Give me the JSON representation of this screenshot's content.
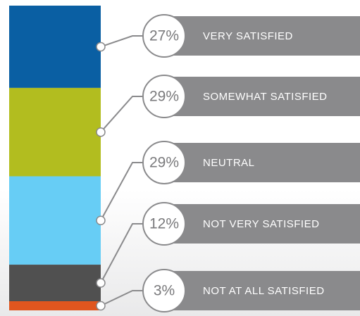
{
  "chart_data": {
    "type": "bar",
    "stacked": true,
    "series": [
      {
        "name": "VERY SATISFIED",
        "color": "#0a5fa3",
        "values": [
          27
        ],
        "value_labels": [
          "27%"
        ]
      },
      {
        "name": "SOMEWHAT SATISFIED",
        "color": "#b2bd1f",
        "values": [
          29
        ],
        "value_labels": [
          "29%"
        ]
      },
      {
        "name": "NEUTRAL",
        "color": "#67cdf5",
        "values": [
          29
        ],
        "value_labels": [
          "29%"
        ]
      },
      {
        "name": "NOT VERY SATISFIED",
        "color": "#505050",
        "values": [
          12
        ],
        "value_labels": [
          "12%"
        ]
      },
      {
        "name": "NOT AT ALL SATISFIED",
        "color": "#e0561f",
        "values": [
          3
        ],
        "value_labels": [
          "3%"
        ]
      }
    ]
  }
}
